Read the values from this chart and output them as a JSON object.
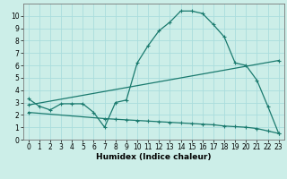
{
  "title": "",
  "xlabel": "Humidex (Indice chaleur)",
  "background_color": "#cceee8",
  "grid_color": "#aadddd",
  "line_color": "#1a7a6e",
  "xlim": [
    -0.5,
    23.5
  ],
  "ylim": [
    0,
    11
  ],
  "xticks": [
    0,
    1,
    2,
    3,
    4,
    5,
    6,
    7,
    8,
    9,
    10,
    11,
    12,
    13,
    14,
    15,
    16,
    17,
    18,
    19,
    20,
    21,
    22,
    23
  ],
  "yticks": [
    0,
    1,
    2,
    3,
    4,
    5,
    6,
    7,
    8,
    9,
    10
  ],
  "curve1_x": [
    0,
    1,
    2,
    3,
    4,
    5,
    6,
    7,
    8,
    9,
    10,
    11,
    12,
    13,
    14,
    15,
    16,
    17,
    18,
    19,
    20,
    21,
    22,
    23
  ],
  "curve1_y": [
    3.3,
    2.7,
    2.4,
    2.9,
    2.9,
    2.9,
    2.2,
    1.0,
    3.0,
    3.2,
    6.2,
    7.6,
    8.8,
    9.5,
    10.4,
    10.4,
    10.2,
    9.3,
    8.3,
    6.2,
    6.0,
    4.8,
    2.7,
    0.5
  ],
  "curve2_x": [
    0,
    23
  ],
  "curve2_y": [
    2.8,
    6.4
  ],
  "curve3_x": [
    0,
    7,
    8,
    9,
    10,
    11,
    12,
    13,
    14,
    15,
    16,
    17,
    18,
    19,
    20,
    21,
    22,
    23
  ],
  "curve3_y": [
    2.2,
    1.7,
    1.65,
    1.6,
    1.55,
    1.5,
    1.45,
    1.4,
    1.35,
    1.3,
    1.25,
    1.2,
    1.1,
    1.05,
    1.0,
    0.9,
    0.7,
    0.5
  ],
  "marker": "+",
  "markersize": 3.5,
  "linewidth": 0.9,
  "tick_fontsize": 5.5,
  "xlabel_fontsize": 6.5
}
